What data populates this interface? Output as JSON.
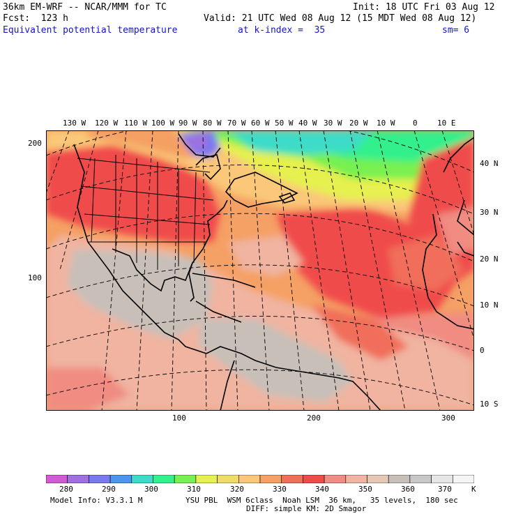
{
  "header": {
    "model_title": "36km EM-WRF -- NCAR/MMM for TC",
    "init": "Init: 18 UTC Fri 03 Aug 12",
    "fcst": "Fcst:  123 h",
    "valid": "Valid: 21 UTC Wed 08 Aug 12 (15 MDT Wed 08 Aug 12)",
    "field": "Equivalent potential temperature",
    "level": "at k-index =  35",
    "smoothing": "sm= 6"
  },
  "map": {
    "top_lon_labels": [
      "130 W",
      "120 W",
      "110 W",
      "100 W",
      "90 W",
      "80 W",
      "70 W",
      "60 W",
      "50 W",
      "40 W",
      "30 W",
      "20 W",
      "10 W",
      "0",
      "10 E"
    ],
    "right_lat_labels": [
      "40 N",
      "30 N",
      "20 N",
      "10 N",
      "0",
      "10 S"
    ],
    "left_grid_labels": [
      "200",
      "100"
    ],
    "bottom_grid_labels": [
      "100",
      "200",
      "300"
    ]
  },
  "colorbar": {
    "labels": [
      "280",
      "290",
      "300",
      "310",
      "320",
      "330",
      "340",
      "350",
      "360",
      "370"
    ],
    "unit": "K",
    "colors": [
      "#d25ad2",
      "#a070e0",
      "#7878f0",
      "#4b96f0",
      "#3cdcc8",
      "#32f08c",
      "#78f050",
      "#e6f050",
      "#f0dc64",
      "#fac878",
      "#f5a064",
      "#f06e5a",
      "#f04b4b",
      "#f08c82",
      "#f0b4a0",
      "#e6c8b4",
      "#c8c0b8",
      "#c8c8c8",
      "#e6e6e6",
      "#f5f5f5"
    ]
  },
  "footer": {
    "model_info": "Model Info: V3.3.1 M",
    "physics_1": "YSU PBL  WSM 6class  Noah LSM  36 km,   35 levels,  180 sec",
    "physics_2": "DIFF: simple KM: 2D Smagor"
  }
}
